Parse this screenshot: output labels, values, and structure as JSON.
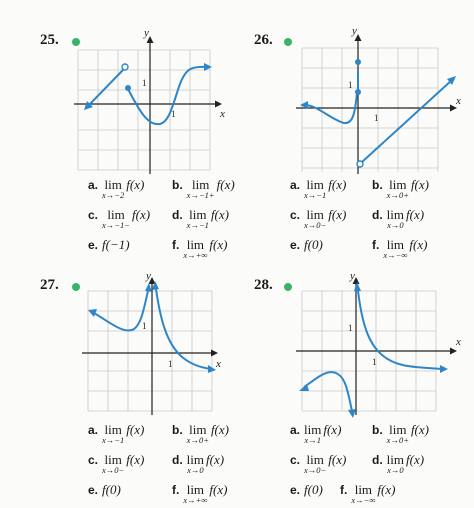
{
  "problems": [
    {
      "number": "25.",
      "y_label": "y",
      "x_label": "x",
      "tick_one_y": "1",
      "tick_one_x": "1",
      "parts": [
        {
          "letter": "a.",
          "word": "lim",
          "sub": "x→−2",
          "expr": "f(x)"
        },
        {
          "letter": "b.",
          "word": "lim",
          "sub": "x→−1+",
          "expr": "f(x)"
        },
        {
          "letter": "c.",
          "word": "lim",
          "sub": "x→−1−",
          "expr": "f(x)"
        },
        {
          "letter": "d.",
          "word": "lim",
          "sub": "x→−1",
          "expr": "f(x)"
        },
        {
          "letter": "e.",
          "word": "",
          "sub": "",
          "expr": "f(−1)"
        },
        {
          "letter": "f.",
          "word": "lim",
          "sub": "x→+∞",
          "expr": "f(x)"
        }
      ]
    },
    {
      "number": "26.",
      "y_label": "y",
      "x_label": "x",
      "tick_one_y": "1",
      "tick_one_x": "1",
      "parts": [
        {
          "letter": "a.",
          "word": "lim",
          "sub": "x→−1",
          "expr": "f(x)"
        },
        {
          "letter": "b.",
          "word": "lim",
          "sub": "x→0+",
          "expr": "f(x)"
        },
        {
          "letter": "c.",
          "word": "lim",
          "sub": "x→0−",
          "expr": "f(x)"
        },
        {
          "letter": "d.",
          "word": "lim",
          "sub": "x→0",
          "expr": "f(x)"
        },
        {
          "letter": "e.",
          "word": "",
          "sub": "",
          "expr": "f(0)"
        },
        {
          "letter": "f.",
          "word": "lim",
          "sub": "x→−∞",
          "expr": "f(x)"
        }
      ]
    },
    {
      "number": "27.",
      "y_label": "y",
      "x_label": "x",
      "tick_one_y": "1",
      "tick_one_x": "1",
      "parts": [
        {
          "letter": "a.",
          "word": "lim",
          "sub": "x→−1",
          "expr": "f(x)"
        },
        {
          "letter": "b.",
          "word": "lim",
          "sub": "x→0+",
          "expr": "f(x)"
        },
        {
          "letter": "c.",
          "word": "lim",
          "sub": "x→0−",
          "expr": "f(x)"
        },
        {
          "letter": "d.",
          "word": "lim",
          "sub": "x→0",
          "expr": "f(x)"
        },
        {
          "letter": "e.",
          "word": "",
          "sub": "",
          "expr": "f(0)"
        },
        {
          "letter": "f.",
          "word": "lim",
          "sub": "x→+∞",
          "expr": "f(x)"
        }
      ]
    },
    {
      "number": "28.",
      "y_label": "y",
      "x_label": "x",
      "tick_one_y": "1",
      "tick_one_x": "1",
      "parts": [
        {
          "letter": "a.",
          "word": "lim",
          "sub": "x→1",
          "expr": "f(x)"
        },
        {
          "letter": "b.",
          "word": "lim",
          "sub": "x→0+",
          "expr": "f(x)"
        },
        {
          "letter": "c.",
          "word": "lim",
          "sub": "x→0−",
          "expr": "f(x)"
        },
        {
          "letter": "d.",
          "word": "lim",
          "sub": "x→0",
          "expr": "f(x)"
        },
        {
          "letter": "e.",
          "word": "",
          "sub": "",
          "expr": "f(0)"
        },
        {
          "letter": "f.",
          "word": "lim",
          "sub": "x→−∞",
          "expr": "f(x)"
        }
      ]
    }
  ],
  "colors": {
    "curve": "#2e86c8",
    "bullet": "#39b36a",
    "grid": "#c9c9c9",
    "axis": "#222222"
  }
}
